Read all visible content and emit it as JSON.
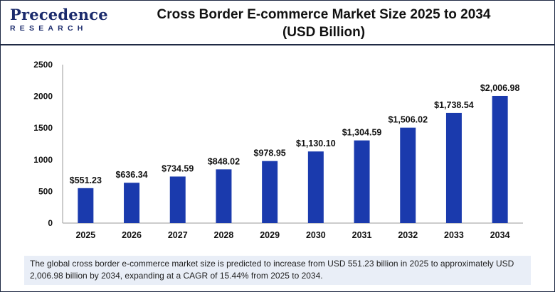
{
  "brand": {
    "logo_top": "Precedence",
    "logo_bottom": "RESEARCH"
  },
  "header": {
    "title_line1": "Cross Border E-commerce Market Size 2025 to 2034",
    "title_line2": "(USD Billion)"
  },
  "footer": {
    "text": "The global cross border e-commerce market size is predicted to increase from USD 551.23 billion in 2025 to approximately USD 2,006.98 billion by 2034, expanding at a CAGR of 15.44% from 2025 to 2034."
  },
  "chart_data": {
    "type": "bar",
    "title": "Cross Border E-commerce Market Size 2025 to 2034 (USD Billion)",
    "categories": [
      "2025",
      "2026",
      "2027",
      "2028",
      "2029",
      "2030",
      "2031",
      "2032",
      "2033",
      "2034"
    ],
    "values": [
      551.23,
      636.34,
      734.59,
      848.02,
      978.95,
      1130.1,
      1304.59,
      1506.02,
      1738.54,
      2006.98
    ],
    "data_labels": [
      "$551.23",
      "$636.34",
      "$734.59",
      "$848.02",
      "$978.95",
      "$1,130.10",
      "$1,304.59",
      "$1,506.02",
      "$1,738.54",
      "$2,006.98"
    ],
    "yticks": [
      0,
      500,
      1000,
      1500,
      2000,
      2500
    ],
    "ylim": [
      0,
      2500
    ],
    "xlabel": "",
    "ylabel": "",
    "grid": false,
    "legend": "none",
    "bar_color": "#1a3aad"
  }
}
